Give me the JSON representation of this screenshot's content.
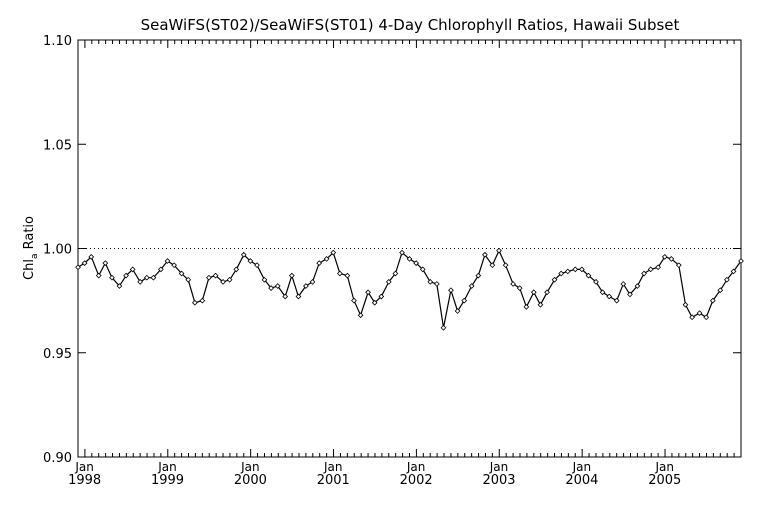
{
  "chart_data": {
    "type": "line",
    "title": "SeaWiFS(ST02)/SeaWiFS(ST01) 4-Day Chlorophyll Ratios, Hawaii Subset",
    "ylabel_main": "Chl",
    "ylabel_sub": "a",
    "ylabel_tail": " Ratio",
    "xlabel": "",
    "ylim": [
      0.9,
      1.1
    ],
    "yticks": [
      "0.90",
      "0.95",
      "1.00",
      "1.05",
      "1.10"
    ],
    "xlim": [
      1997.92,
      2005.92
    ],
    "xticks": [
      {
        "month": "Jan",
        "year": "1998"
      },
      {
        "month": "Jan",
        "year": "1999"
      },
      {
        "month": "Jan",
        "year": "2000"
      },
      {
        "month": "Jan",
        "year": "2001"
      },
      {
        "month": "Jan",
        "year": "2002"
      },
      {
        "month": "Jan",
        "year": "2003"
      },
      {
        "month": "Jan",
        "year": "2004"
      },
      {
        "month": "Jan",
        "year": "2005"
      }
    ],
    "reference_line": 1.0,
    "grid": false,
    "series": [
      {
        "x": [
          1997.92,
          1998.0,
          1998.08,
          1998.17,
          1998.25,
          1998.33,
          1998.42,
          1998.5,
          1998.58,
          1998.67,
          1998.75,
          1998.83,
          1998.92,
          1999.0,
          1999.08,
          1999.17,
          1999.25,
          1999.33,
          1999.42,
          1999.5,
          1999.58,
          1999.67,
          1999.75,
          1999.83,
          1999.92,
          2000.0,
          2000.08,
          2000.17,
          2000.25,
          2000.33,
          2000.42,
          2000.5,
          2000.58,
          2000.67,
          2000.75,
          2000.83,
          2000.92,
          2001.0,
          2001.08,
          2001.17,
          2001.25,
          2001.33,
          2001.42,
          2001.5,
          2001.58,
          2001.67,
          2001.75,
          2001.83,
          2001.92,
          2002.0,
          2002.08,
          2002.17,
          2002.25,
          2002.33,
          2002.42,
          2002.5,
          2002.58,
          2002.67,
          2002.75,
          2002.83,
          2002.92,
          2003.0,
          2003.08,
          2003.17,
          2003.25,
          2003.33,
          2003.42,
          2003.5,
          2003.58,
          2003.67,
          2003.75,
          2003.83,
          2003.92,
          2004.0,
          2004.08,
          2004.17,
          2004.25,
          2004.33,
          2004.42,
          2004.5,
          2004.58,
          2004.67,
          2004.75,
          2004.83,
          2004.92,
          2005.0,
          2005.08,
          2005.17,
          2005.25,
          2005.33,
          2005.42,
          2005.5,
          2005.58,
          2005.67,
          2005.75,
          2005.83,
          2005.92
        ],
        "y": [
          0.991,
          0.993,
          0.996,
          0.987,
          0.993,
          0.986,
          0.982,
          0.987,
          0.99,
          0.984,
          0.986,
          0.986,
          0.99,
          0.994,
          0.992,
          0.988,
          0.985,
          0.974,
          0.975,
          0.986,
          0.987,
          0.984,
          0.985,
          0.99,
          0.997,
          0.994,
          0.992,
          0.985,
          0.981,
          0.982,
          0.977,
          0.987,
          0.977,
          0.982,
          0.984,
          0.993,
          0.995,
          0.998,
          0.988,
          0.987,
          0.975,
          0.968,
          0.979,
          0.974,
          0.977,
          0.984,
          0.988,
          0.998,
          0.995,
          0.993,
          0.99,
          0.984,
          0.983,
          0.962,
          0.98,
          0.97,
          0.975,
          0.982,
          0.987,
          0.997,
          0.992,
          0.999,
          0.992,
          0.983,
          0.981,
          0.972,
          0.979,
          0.973,
          0.979,
          0.985,
          0.988,
          0.989,
          0.99,
          0.99,
          0.987,
          0.984,
          0.979,
          0.977,
          0.975,
          0.983,
          0.978,
          0.982,
          0.988,
          0.99,
          0.991,
          0.996,
          0.995,
          0.992,
          0.973,
          0.967,
          0.969,
          0.967,
          0.975,
          0.98,
          0.985,
          0.989,
          0.994
        ]
      }
    ]
  }
}
